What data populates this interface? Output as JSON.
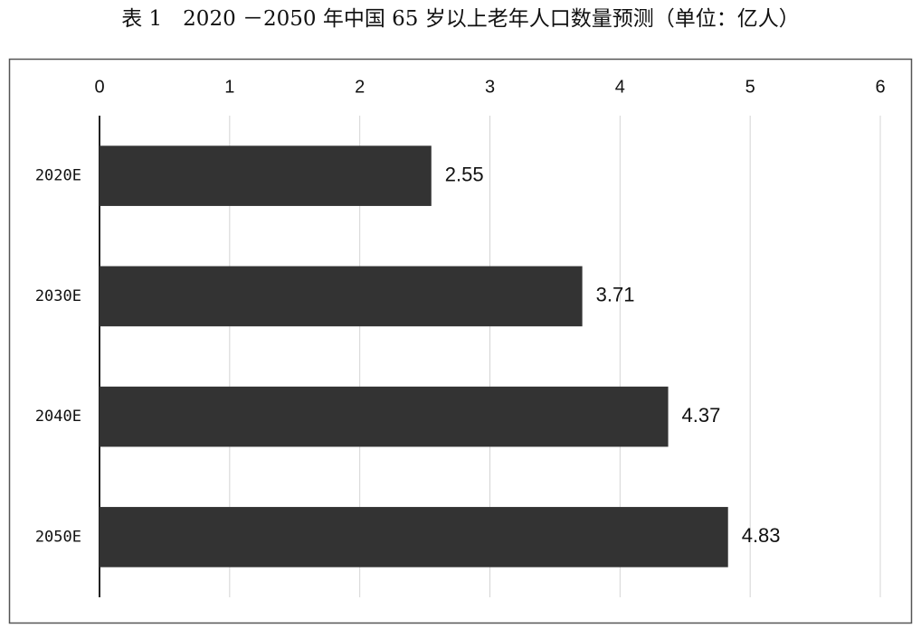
{
  "chart_data": {
    "type": "bar",
    "orientation": "horizontal",
    "title": "表 1　2020 －2050 年中国 65 岁以上老年人口数量预测（单位：亿人）",
    "categories": [
      "2020E",
      "2030E",
      "2040E",
      "2050E"
    ],
    "values": [
      2.55,
      3.71,
      4.37,
      4.83
    ],
    "color": "#333333",
    "xlim": [
      0,
      6
    ],
    "xticks": [
      0,
      1,
      2,
      3,
      4,
      5,
      6
    ],
    "grid": true
  }
}
